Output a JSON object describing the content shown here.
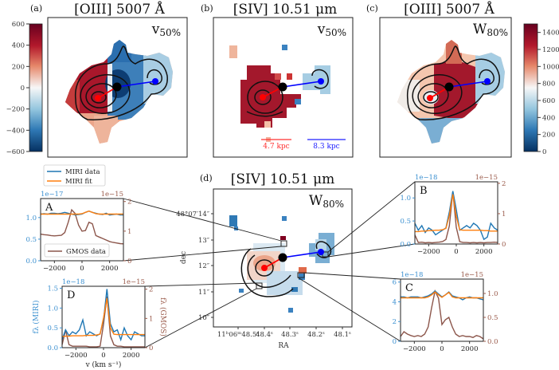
{
  "figure": {
    "panels": {
      "a": {
        "label": "(a)",
        "title": "[OIII] 5007 Å",
        "quantity": "v",
        "quantity_sub": "50%",
        "colorbar": {
          "colormap": "RdBu_r",
          "range": [
            -600,
            600
          ],
          "ticks": [
            "600",
            "400",
            "200",
            "0",
            "−200",
            "−400",
            "−600"
          ]
        }
      },
      "b": {
        "label": "(b)",
        "title": "[SIV] 10.51 μm",
        "quantity": "v",
        "quantity_sub": "50%",
        "scalebars": [
          {
            "label": "4.7 kpc",
            "color": "#ff3030"
          },
          {
            "label": "8.3 kpc",
            "color": "#2020ff"
          }
        ]
      },
      "c": {
        "label": "(c)",
        "title": "[OIII] 5007 Å",
        "quantity": "W",
        "quantity_sub": "80%",
        "colorbar": {
          "colormap": "RdBu_r",
          "range": [
            0,
            1500
          ],
          "ticks": [
            "1400",
            "1200",
            "1000",
            "800",
            "600",
            "400",
            "200",
            "0"
          ]
        }
      },
      "d": {
        "label": "(d)",
        "title": "[SIV] 10.51 μm",
        "quantity": "W",
        "quantity_sub": "80%",
        "xlabel": "RA",
        "ylabel": "dec",
        "xticks": [
          "11ʰ06ᵐ48.5ˢ",
          "48.4ˢ",
          "48.3ˢ",
          "48.2ˢ",
          "48.1ˢ"
        ],
        "yticks": [
          "48°07′14″",
          "13″",
          "12″",
          "11″",
          "10″"
        ]
      }
    },
    "marker_colors": {
      "nucleus": "#000000",
      "red_component": "#ff0000",
      "blue_component": "#0000ff"
    }
  },
  "legend": {
    "miri_data": "MIRI data",
    "miri_fit": "MIRI fit",
    "gmos_data": "GMOS data"
  },
  "chart_data": [
    {
      "type": "line",
      "panel": "A",
      "xlim": [
        -3000,
        3000
      ],
      "xticks": [
        "−2000",
        "0",
        "2000"
      ],
      "xtick_values": [
        -2000,
        0,
        2000
      ],
      "y_left": {
        "offset_label": "1e−17",
        "lim": [
          0,
          1.44
        ],
        "ticks": [
          "0.0",
          "0.5",
          "1.0"
        ],
        "tick_values": [
          0,
          0.5,
          1.0
        ],
        "color": "#3a8fd0"
      },
      "y_right": {
        "offset_label": "1e−15",
        "lim": [
          0,
          2.1
        ],
        "ticks": [
          "0",
          "1",
          "2"
        ],
        "tick_values": [
          0,
          1,
          2
        ],
        "color": "#9a5a4a"
      },
      "x": [
        -3000,
        -2750,
        -2500,
        -2250,
        -2000,
        -1750,
        -1500,
        -1250,
        -1000,
        -750,
        -500,
        -250,
        0,
        250,
        500,
        750,
        1000,
        1250,
        1500,
        1750,
        2000,
        2250,
        2500,
        2750,
        3000
      ],
      "series": [
        {
          "name": "MIRI data",
          "axis": "left",
          "color": "#1f77b4",
          "values": [
            1.08,
            1.09,
            1.08,
            1.1,
            1.1,
            1.09,
            1.1,
            1.12,
            1.1,
            1.08,
            1.06,
            1.07,
            1.08,
            1.12,
            1.15,
            1.12,
            1.1,
            1.08,
            1.07,
            1.1,
            1.06,
            1.07,
            1.08,
            1.06,
            1.06
          ]
        },
        {
          "name": "MIRI fit",
          "axis": "left",
          "color": "#ff7f0e",
          "values": [
            1.08,
            1.08,
            1.08,
            1.08,
            1.08,
            1.08,
            1.08,
            1.08,
            1.08,
            1.08,
            1.08,
            1.08,
            1.09,
            1.12,
            1.15,
            1.12,
            1.09,
            1.08,
            1.08,
            1.08,
            1.08,
            1.08,
            1.08,
            1.08,
            1.08
          ]
        },
        {
          "name": "GMOS data",
          "axis": "right",
          "color": "#8c564b",
          "values": [
            0.9,
            0.88,
            0.87,
            0.85,
            0.84,
            0.85,
            0.86,
            0.95,
            1.3,
            1.72,
            1.6,
            1.2,
            1.0,
            1.02,
            1.3,
            1.25,
            0.85,
            0.8,
            0.75,
            0.7,
            0.65,
            0.62,
            0.6,
            0.58,
            0.57
          ]
        }
      ]
    },
    {
      "type": "line",
      "panel": "B",
      "xlim": [
        -3000,
        3000
      ],
      "xticks": [
        "−2000",
        "0",
        "2000"
      ],
      "xtick_values": [
        -2000,
        0,
        2000
      ],
      "y_left": {
        "offset_label": "1e−18",
        "lim": [
          0,
          1.35
        ],
        "ticks": [
          "0.0",
          "0.5",
          "1.0"
        ],
        "tick_values": [
          0,
          0.5,
          1.0
        ],
        "color": "#3a8fd0"
      },
      "y_right": {
        "offset_label": "1e−15",
        "lim": [
          0,
          2.05
        ],
        "ticks": [
          "0",
          "1",
          "2"
        ],
        "tick_values": [
          0,
          1,
          2
        ],
        "color": "#9a5a4a"
      },
      "x": [
        -3000,
        -2750,
        -2500,
        -2250,
        -2000,
        -1750,
        -1500,
        -1250,
        -1000,
        -750,
        -500,
        -250,
        0,
        250,
        500,
        750,
        1000,
        1250,
        1500,
        1750,
        2000,
        2250,
        2500,
        2750,
        3000
      ],
      "series": [
        {
          "name": "MIRI data",
          "axis": "left",
          "color": "#1f77b4",
          "values": [
            0.45,
            0.3,
            0.4,
            0.25,
            0.35,
            0.3,
            0.2,
            0.25,
            0.3,
            0.35,
            0.7,
            1.15,
            0.75,
            0.3,
            0.35,
            0.4,
            0.35,
            0.45,
            0.4,
            0.3,
            0.1,
            0.15,
            0.45,
            0.35,
            0.3
          ]
        },
        {
          "name": "MIRI fit",
          "axis": "left",
          "color": "#ff7f0e",
          "values": [
            0.27,
            0.27,
            0.28,
            0.28,
            0.29,
            0.29,
            0.3,
            0.3,
            0.31,
            0.34,
            0.62,
            1.08,
            0.6,
            0.31,
            0.3,
            0.3,
            0.3,
            0.3,
            0.3,
            0.3,
            0.29,
            0.29,
            0.28,
            0.28,
            0.28
          ]
        },
        {
          "name": "GMOS data",
          "axis": "right",
          "color": "#8c564b",
          "values": [
            0.3,
            0.05,
            0.06,
            0.04,
            0.05,
            0.04,
            0.05,
            0.06,
            0.08,
            0.15,
            0.6,
            1.72,
            0.55,
            0.08,
            0.05,
            0.05,
            0.04,
            0.05,
            0.04,
            0.05,
            0.04,
            0.05,
            0.05,
            0.06,
            0.05
          ]
        }
      ]
    },
    {
      "type": "line",
      "panel": "C",
      "xlim": [
        -3000,
        3000
      ],
      "xticks": [
        "−2000",
        "0",
        "2000"
      ],
      "xtick_values": [
        -2000,
        0,
        2000
      ],
      "y_left": {
        "offset_label": "1e−18",
        "lim": [
          0,
          6.3
        ],
        "ticks": [
          "0",
          "2",
          "4",
          "6"
        ],
        "tick_values": [
          0,
          2,
          4,
          6
        ],
        "color": "#3a8fd0"
      },
      "y_right": {
        "offset_label": "1e−15",
        "lim": [
          0,
          1.3
        ],
        "ticks": [
          "0.0",
          "0.5",
          "1.0"
        ],
        "tick_values": [
          0,
          0.5,
          1.0
        ],
        "color": "#9a5a4a"
      },
      "x": [
        -3000,
        -2750,
        -2500,
        -2250,
        -2000,
        -1750,
        -1500,
        -1250,
        -1000,
        -750,
        -500,
        -250,
        0,
        250,
        500,
        750,
        1000,
        1250,
        1500,
        1750,
        2000,
        2250,
        2500,
        2750,
        3000
      ],
      "series": [
        {
          "name": "MIRI data",
          "axis": "left",
          "color": "#1f77b4",
          "values": [
            4.5,
            4.5,
            4.4,
            4.5,
            4.5,
            4.5,
            4.4,
            4.5,
            4.6,
            4.8,
            5.1,
            4.8,
            4.5,
            4.7,
            5.0,
            4.6,
            4.5,
            4.4,
            4.2,
            4.4,
            4.5,
            4.4,
            4.4,
            4.3,
            4.2
          ]
        },
        {
          "name": "MIRI fit",
          "axis": "left",
          "color": "#ff7f0e",
          "values": [
            4.4,
            4.4,
            4.4,
            4.4,
            4.4,
            4.4,
            4.4,
            4.4,
            4.5,
            4.7,
            5.0,
            4.7,
            4.45,
            4.7,
            4.95,
            4.5,
            4.4,
            4.4,
            4.4,
            4.4,
            4.4,
            4.4,
            4.4,
            4.4,
            4.4
          ]
        },
        {
          "name": "GMOS data",
          "axis": "right",
          "color": "#8c564b",
          "values": [
            0.1,
            0.2,
            0.15,
            0.12,
            0.1,
            0.12,
            0.1,
            0.15,
            0.3,
            0.7,
            1.05,
            0.9,
            0.35,
            0.45,
            0.5,
            0.3,
            0.15,
            0.1,
            0.12,
            0.1,
            0.1,
            0.08,
            0.12,
            0.1,
            0.05
          ]
        }
      ]
    },
    {
      "type": "line",
      "panel": "D",
      "xlim": [
        -3000,
        3000
      ],
      "xticks": [
        "−2000",
        "0",
        "2000"
      ],
      "xtick_values": [
        -2000,
        0,
        2000
      ],
      "xlabel": "v (km s⁻¹)",
      "y_left": {
        "offset_label": "1e−18",
        "label": "fλ (MIRI)",
        "lim": [
          0,
          1.55
        ],
        "ticks": [
          "0.0",
          "0.5",
          "1.0",
          "1.5"
        ],
        "tick_values": [
          0,
          0.5,
          1.0,
          1.5
        ],
        "color": "#3a8fd0"
      },
      "y_right": {
        "offset_label": "1e−15",
        "label": "fλ (GMOS)",
        "lim": [
          0,
          2.1
        ],
        "ticks": [
          "0",
          "1",
          "2"
        ],
        "tick_values": [
          0,
          1,
          2
        ],
        "color": "#9a5a4a"
      },
      "x": [
        -3000,
        -2750,
        -2500,
        -2250,
        -2000,
        -1750,
        -1500,
        -1250,
        -1000,
        -750,
        -500,
        -250,
        0,
        250,
        500,
        750,
        1000,
        1250,
        1500,
        1750,
        2000,
        2250,
        2500,
        2750,
        3000
      ],
      "series": [
        {
          "name": "MIRI data",
          "axis": "left",
          "color": "#1f77b4",
          "values": [
            0.2,
            0.45,
            0.3,
            0.4,
            0.35,
            0.45,
            0.7,
            0.3,
            0.4,
            0.35,
            0.3,
            0.35,
            0.7,
            1.48,
            0.6,
            0.4,
            0.45,
            0.2,
            0.5,
            0.3,
            0.2,
            0.4,
            0.35,
            0.3,
            0.3
          ]
        },
        {
          "name": "MIRI fit",
          "axis": "left",
          "color": "#ff7f0e",
          "values": [
            0.28,
            0.29,
            0.29,
            0.3,
            0.3,
            0.3,
            0.3,
            0.31,
            0.31,
            0.31,
            0.32,
            0.34,
            0.75,
            1.25,
            0.5,
            0.34,
            0.33,
            0.33,
            0.33,
            0.33,
            0.33,
            0.33,
            0.33,
            0.33,
            0.33
          ]
        },
        {
          "name": "GMOS data",
          "axis": "right",
          "color": "#8c564b",
          "values": [
            0.1,
            0.6,
            0.1,
            0.05,
            0.05,
            0.05,
            0.05,
            0.05,
            0.03,
            0.03,
            0.03,
            0.05,
            0.8,
            1.75,
            0.4,
            0.1,
            0.05,
            0.05,
            0.03,
            0.03,
            0.03,
            0.03,
            0.03,
            0.03,
            0.03
          ]
        }
      ]
    }
  ]
}
